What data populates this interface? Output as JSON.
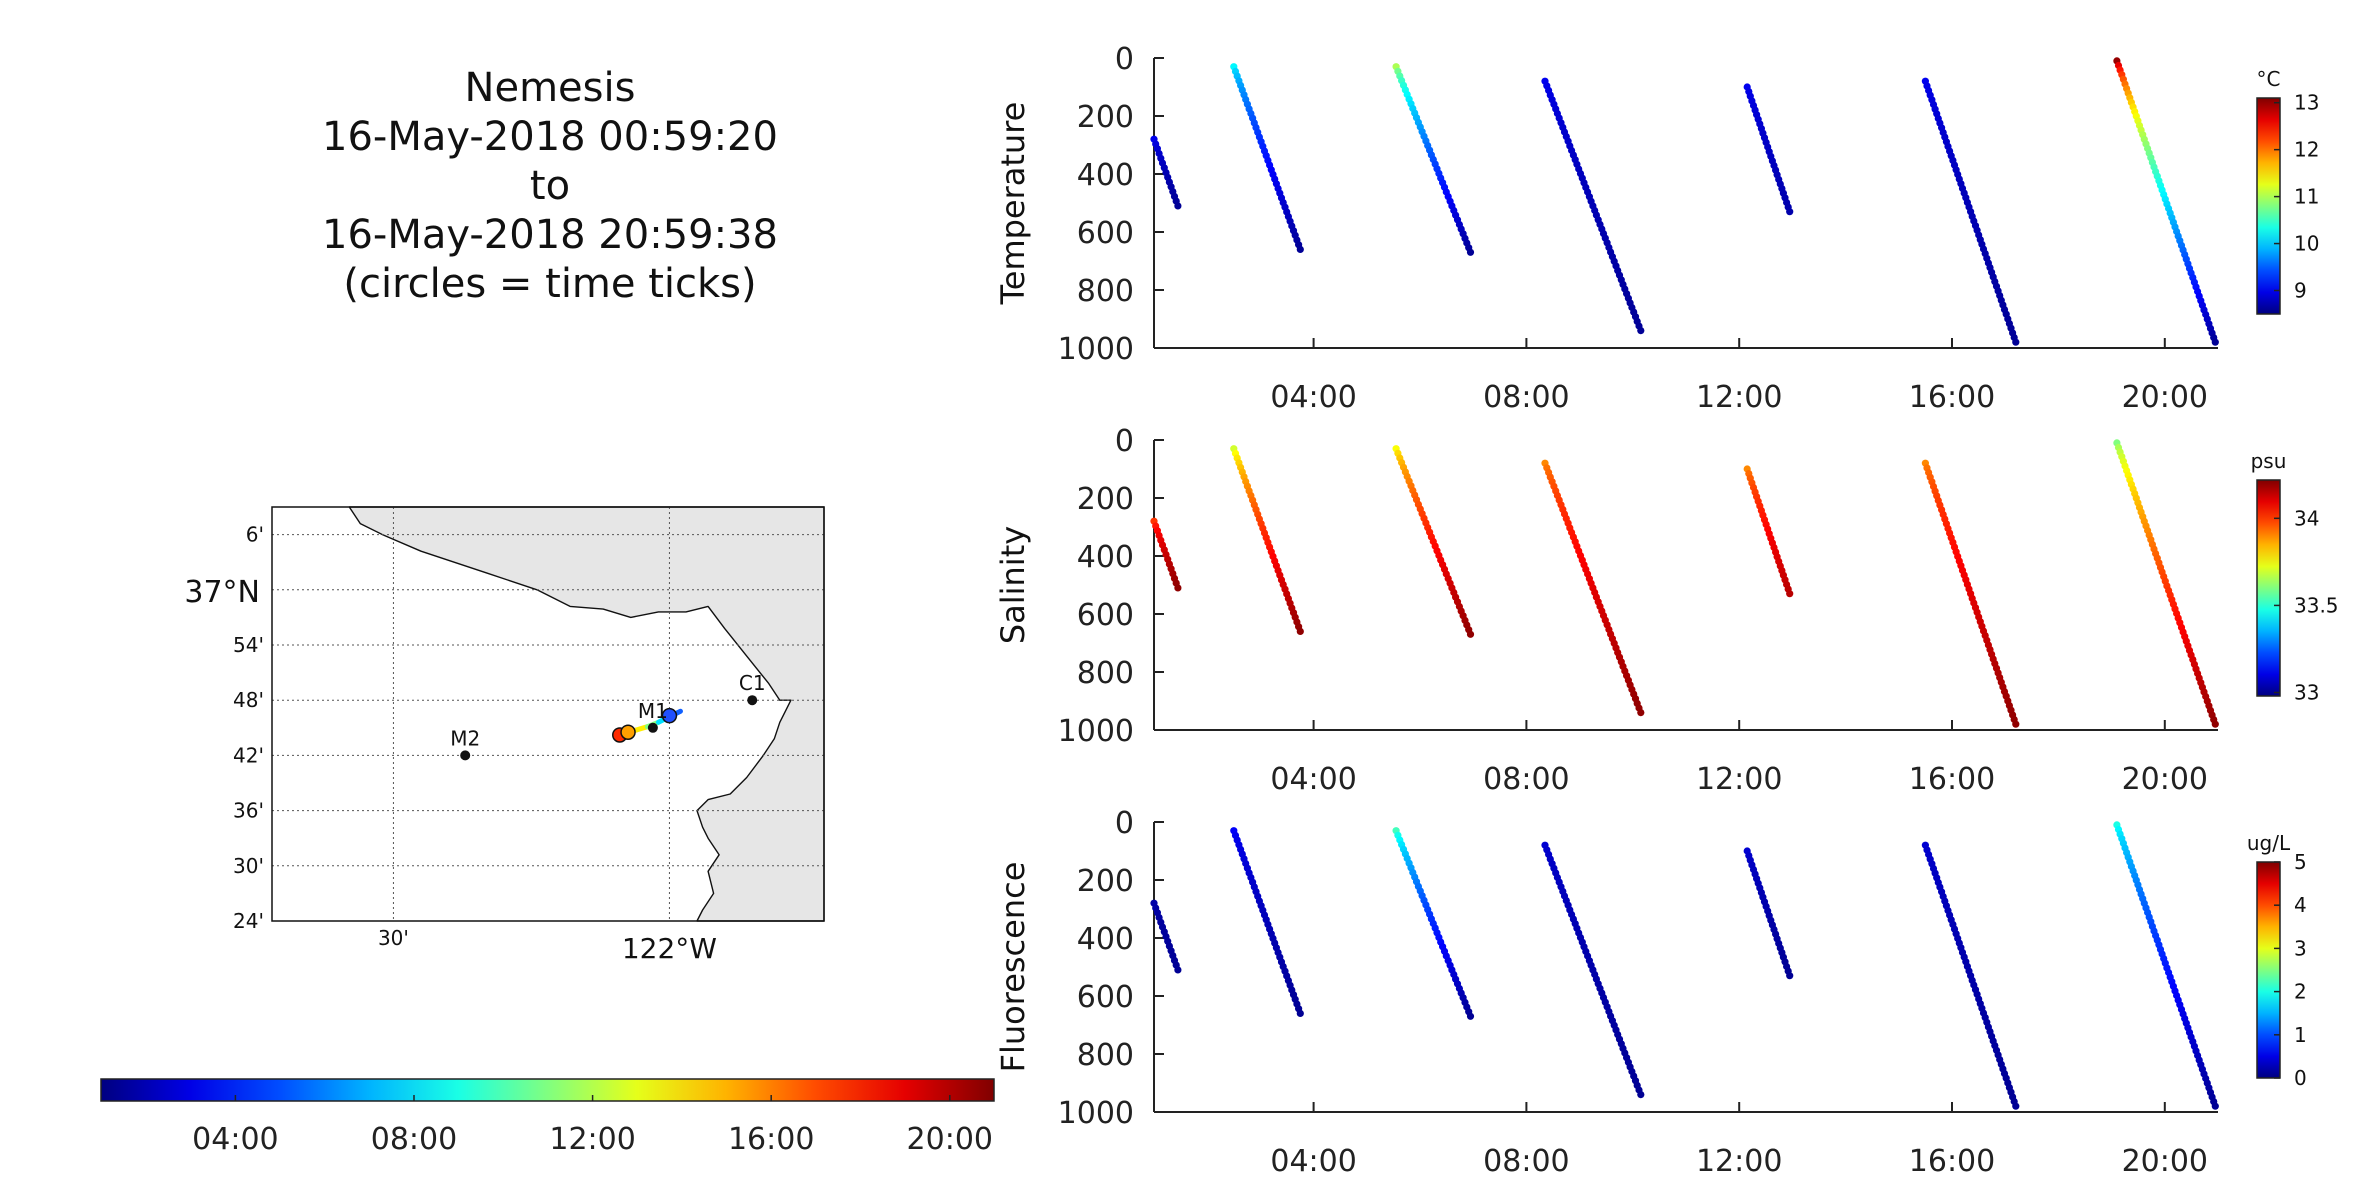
{
  "title": {
    "line1": "Nemesis",
    "line2": "16-May-2018 00:59:20",
    "line3": "to",
    "line4": "16-May-2018 20:59:38",
    "line5": "(circles = time ticks)"
  },
  "map": {
    "lat_labels": [
      "6'",
      "37°N",
      "54'",
      "48'",
      "42'",
      "36'",
      "30'",
      "24'"
    ],
    "lon_labels": [
      "30'",
      "122°W"
    ],
    "stations": [
      {
        "name": "M2",
        "lon": -122.37,
        "lat": 36.7
      },
      {
        "name": "M1",
        "lon": -122.03,
        "lat": 36.75
      },
      {
        "name": "C1",
        "lon": -121.85,
        "lat": 36.8
      }
    ],
    "track": [
      {
        "lon": -122.09,
        "lat": 36.737,
        "color": "#ff2a00"
      },
      {
        "lon": -122.075,
        "lat": 36.742,
        "color": "#ffb000"
      },
      {
        "lon": -122.06,
        "lat": 36.746,
        "color": "#ffee00"
      },
      {
        "lon": -122.04,
        "lat": 36.752,
        "color": "#80ff80"
      },
      {
        "lon": -122.02,
        "lat": 36.76,
        "color": "#00e0ff"
      },
      {
        "lon": -122.0,
        "lat": 36.77,
        "color": "#1060ff"
      },
      {
        "lon": -121.98,
        "lat": 36.78,
        "color": "#0000c0"
      }
    ],
    "time_circles": [
      {
        "lon": -122.09,
        "lat": 36.737,
        "color": "#ff2a00"
      },
      {
        "lon": -122.075,
        "lat": 36.742,
        "color": "#ffa000"
      },
      {
        "lon": -122.0,
        "lat": 36.772,
        "color": "#2050ff"
      }
    ],
    "land_color": "#e6e6e6"
  },
  "time_colorbar": {
    "ticks": [
      "04:00",
      "08:00",
      "12:00",
      "16:00",
      "20:00"
    ],
    "tick_hours": [
      4,
      8,
      12,
      16,
      20
    ],
    "range_hours": [
      0.99,
      20.99
    ]
  },
  "chart_data": [
    {
      "type": "scatter",
      "ylabel": "Temperature",
      "colorbar_label": "°C",
      "colorbar_ticks": [
        "9",
        "10",
        "11",
        "12",
        "13"
      ],
      "color_range": [
        8.5,
        13.1
      ],
      "x_ticks": [
        "04:00",
        "08:00",
        "12:00",
        "16:00",
        "20:00"
      ],
      "y_ticks": [
        "0",
        "200",
        "400",
        "600",
        "800",
        "1000"
      ],
      "xlim_hours": [
        1.0,
        21.0
      ],
      "ylim": [
        1000,
        0
      ],
      "profiles": [
        {
          "x": [
            1.0,
            1.45
          ],
          "depth": [
            280,
            510
          ],
          "value": [
            9.0,
            8.6
          ]
        },
        {
          "x": [
            2.5,
            3.75
          ],
          "depth": [
            30,
            660
          ],
          "value": [
            10.2,
            8.6
          ]
        },
        {
          "x": [
            5.55,
            6.95
          ],
          "depth": [
            30,
            670
          ],
          "value": [
            11.0,
            8.6
          ]
        },
        {
          "x": [
            8.35,
            10.15
          ],
          "depth": [
            80,
            940
          ],
          "value": [
            9.0,
            8.6
          ]
        },
        {
          "x": [
            12.15,
            12.95
          ],
          "depth": [
            100,
            530
          ],
          "value": [
            9.0,
            8.7
          ]
        },
        {
          "x": [
            15.5,
            17.2
          ],
          "depth": [
            80,
            980
          ],
          "value": [
            9.0,
            8.6
          ]
        },
        {
          "x": [
            19.1,
            20.95
          ],
          "depth": [
            10,
            980
          ],
          "value": [
            13.0,
            8.6
          ]
        }
      ]
    },
    {
      "type": "scatter",
      "ylabel": "Salinity",
      "colorbar_label": "psu",
      "colorbar_ticks": [
        "33",
        "33.5",
        "34"
      ],
      "color_range": [
        32.98,
        34.22
      ],
      "x_ticks": [
        "04:00",
        "08:00",
        "12:00",
        "16:00",
        "20:00"
      ],
      "y_ticks": [
        "0",
        "200",
        "400",
        "600",
        "800",
        "1000"
      ],
      "xlim_hours": [
        1.0,
        21.0
      ],
      "ylim": [
        1000,
        0
      ],
      "profiles": [
        {
          "x": [
            1.0,
            1.45
          ],
          "depth": [
            280,
            510
          ],
          "value": [
            34.0,
            34.2
          ]
        },
        {
          "x": [
            2.5,
            3.75
          ],
          "depth": [
            30,
            660
          ],
          "value": [
            33.7,
            34.2
          ]
        },
        {
          "x": [
            5.55,
            6.95
          ],
          "depth": [
            30,
            670
          ],
          "value": [
            33.75,
            34.2
          ]
        },
        {
          "x": [
            8.35,
            10.15
          ],
          "depth": [
            80,
            940
          ],
          "value": [
            33.9,
            34.2
          ]
        },
        {
          "x": [
            12.15,
            12.95
          ],
          "depth": [
            100,
            530
          ],
          "value": [
            33.9,
            34.15
          ]
        },
        {
          "x": [
            15.5,
            17.2
          ],
          "depth": [
            80,
            980
          ],
          "value": [
            33.9,
            34.2
          ]
        },
        {
          "x": [
            19.1,
            20.95
          ],
          "depth": [
            10,
            980
          ],
          "value": [
            33.6,
            34.2
          ]
        }
      ]
    },
    {
      "type": "scatter",
      "ylabel": "Fluorescence",
      "colorbar_label": "ug/L",
      "colorbar_ticks": [
        "0",
        "1",
        "2",
        "3",
        "4",
        "5"
      ],
      "color_range": [
        0,
        5
      ],
      "x_ticks": [
        "04:00",
        "08:00",
        "12:00",
        "16:00",
        "20:00"
      ],
      "y_ticks": [
        "0",
        "200",
        "400",
        "600",
        "800",
        "1000"
      ],
      "xlim_hours": [
        1.0,
        21.0
      ],
      "ylim": [
        1000,
        0
      ],
      "profiles": [
        {
          "x": [
            1.0,
            1.45
          ],
          "depth": [
            280,
            510
          ],
          "value": [
            0.2,
            0.1
          ]
        },
        {
          "x": [
            2.5,
            3.75
          ],
          "depth": [
            30,
            660
          ],
          "value": [
            0.6,
            0.1
          ]
        },
        {
          "x": [
            5.55,
            6.95
          ],
          "depth": [
            30,
            670
          ],
          "value": [
            2.2,
            0.1
          ]
        },
        {
          "x": [
            8.35,
            10.15
          ],
          "depth": [
            80,
            940
          ],
          "value": [
            0.4,
            0.1
          ]
        },
        {
          "x": [
            12.15,
            12.95
          ],
          "depth": [
            100,
            530
          ],
          "value": [
            0.4,
            0.1
          ]
        },
        {
          "x": [
            15.5,
            17.2
          ],
          "depth": [
            80,
            980
          ],
          "value": [
            0.4,
            0.1
          ]
        },
        {
          "x": [
            19.1,
            20.95
          ],
          "depth": [
            10,
            980
          ],
          "value": [
            2.0,
            0.1
          ]
        }
      ]
    }
  ]
}
